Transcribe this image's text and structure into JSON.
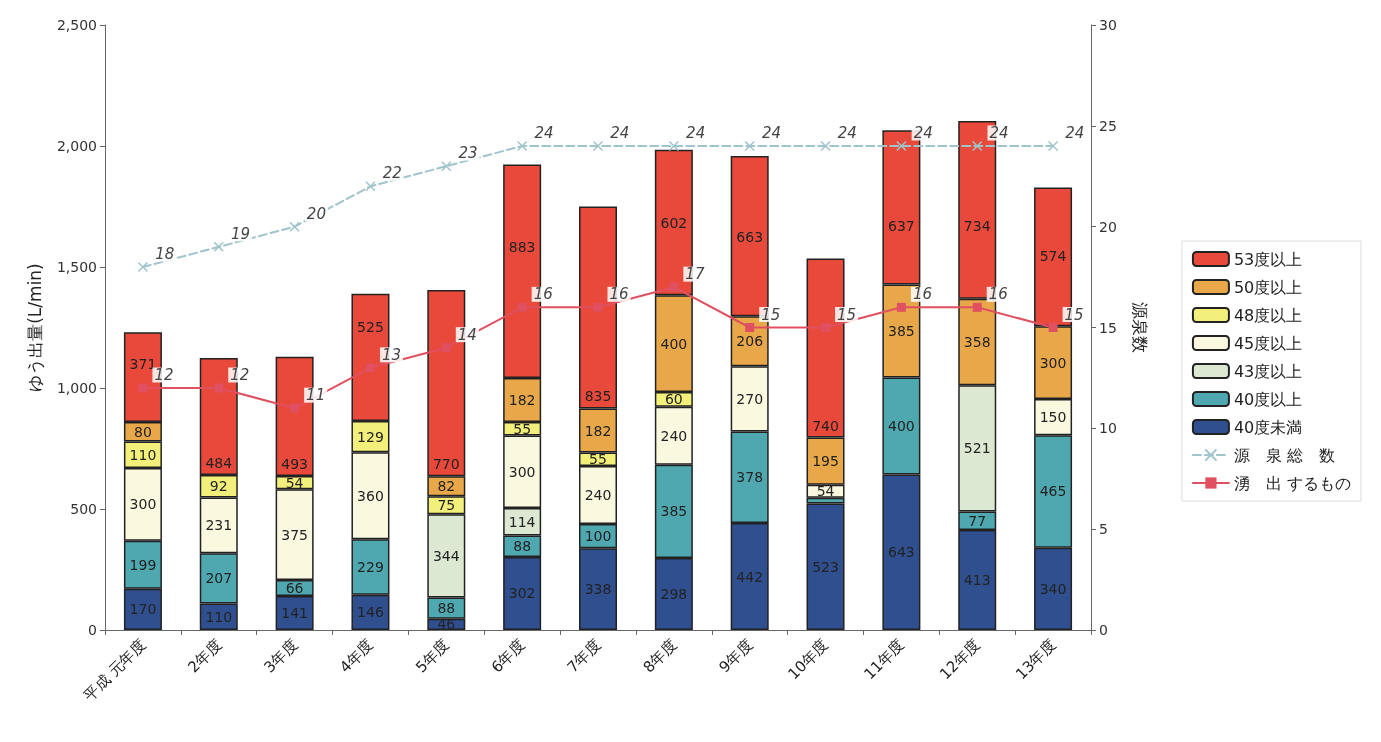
{
  "chart_data": {
    "type": "bar",
    "stacked": true,
    "ylabel": "ゆう出量(L/min)",
    "y2label": "源泉数",
    "categories": [
      "平成 元年度",
      "2年度",
      "3年度",
      "4年度",
      "5年度",
      "6年度",
      "7年度",
      "8年度",
      "9年度",
      "10年度",
      "11年度",
      "12年度",
      "13年度"
    ],
    "ylim": [
      0,
      2500
    ],
    "yticks": [
      0,
      500,
      {
        "value": 1000,
        "label": "1,000"
      },
      {
        "value": 1500,
        "label": "1,500"
      },
      {
        "value": 2000,
        "label": "2,000"
      },
      {
        "value": 2500,
        "label": "2,500"
      }
    ],
    "y2lim": [
      0,
      30
    ],
    "y2ticks": [
      0,
      5,
      10,
      15,
      20,
      25,
      30
    ],
    "grid": false,
    "legend": "right",
    "series": [
      {
        "name": "40度未満",
        "color": "#2f4f8f",
        "values": [
          170,
          110,
          141,
          146,
          46,
          302,
          338,
          298,
          442,
          523,
          643,
          413,
          340
        ],
        "value_labels": [
          "170",
          "110",
          "141",
          "146",
          "46",
          "302",
          "338",
          "298",
          "442",
          "523",
          "643",
          "413",
          "340"
        ]
      },
      {
        "name": "40度以上",
        "color": "#4fa8b0",
        "values": [
          199,
          207,
          66,
          229,
          88,
          88,
          100,
          385,
          378,
          23,
          400,
          77,
          465
        ],
        "value_labels": [
          "199",
          "207",
          "66",
          "229",
          "88",
          "88",
          "100",
          "385",
          "378",
          null,
          "400",
          "77",
          "465"
        ]
      },
      {
        "name": "43度以上",
        "color": "#dde8d2",
        "values": [
          null,
          null,
          null,
          null,
          344,
          114,
          null,
          null,
          null,
          null,
          null,
          521,
          null
        ],
        "value_labels": [
          null,
          null,
          null,
          null,
          "344",
          "114",
          null,
          null,
          null,
          null,
          null,
          "521",
          null
        ]
      },
      {
        "name": "45度以上",
        "color": "#fbf8e0",
        "values": [
          300,
          231,
          375,
          360,
          null,
          300,
          240,
          240,
          270,
          54,
          null,
          null,
          150
        ],
        "value_labels": [
          "300",
          "231",
          "375",
          "360",
          null,
          "300",
          "240",
          "240",
          "270",
          "54",
          null,
          null,
          "150"
        ]
      },
      {
        "name": "48度以上",
        "color": "#f2f07a",
        "values": [
          110,
          92,
          54,
          129,
          75,
          55,
          55,
          60,
          null,
          null,
          null,
          null,
          null
        ],
        "value_labels": [
          "110",
          "92",
          "54",
          "129",
          "75",
          "55",
          "55",
          "60",
          null,
          null,
          null,
          null,
          null
        ]
      },
      {
        "name": "50度以上",
        "color": "#e8a84a",
        "values": [
          80,
          null,
          null,
          null,
          82,
          182,
          182,
          400,
          206,
          195,
          385,
          358,
          300
        ],
        "value_labels": [
          "80",
          null,
          null,
          null,
          "82",
          "182",
          "182",
          "400",
          "206",
          "195",
          "385",
          "358",
          "300"
        ]
      },
      {
        "name": "53度以上",
        "color": "#e8493a",
        "values": [
          371,
          484,
          493,
          525,
          770,
          883,
          835,
          602,
          663,
          740,
          637,
          734,
          574
        ],
        "value_labels": [
          "371",
          "484",
          "493",
          "525",
          "770",
          "883",
          "835",
          "602",
          "663",
          "740",
          "637",
          "734",
          "574"
        ]
      },
      {
        "name": "源　泉 総　数",
        "type": "line",
        "axis": "y2",
        "color": "#9fc4cc",
        "marker": "cross",
        "line_style": "dashed",
        "values": [
          18,
          19,
          20,
          22,
          23,
          24,
          24,
          24,
          24,
          24,
          24,
          24,
          24
        ],
        "value_labels": [
          "18",
          "19",
          "20",
          "22",
          "23",
          "24",
          "24",
          "24",
          "24",
          "24",
          "24",
          "24",
          "24"
        ]
      },
      {
        "name": "湧　出 するもの",
        "type": "line",
        "axis": "y2",
        "color": "#e05060",
        "marker": "square",
        "line_style": "solid",
        "values": [
          12,
          12,
          11,
          13,
          14,
          16,
          16,
          17,
          15,
          15,
          16,
          16,
          15
        ],
        "value_labels": [
          "12",
          "12",
          "11",
          "13",
          "14",
          "16",
          "16",
          "17",
          "15",
          "15",
          "16",
          "16",
          "15"
        ]
      }
    ]
  }
}
